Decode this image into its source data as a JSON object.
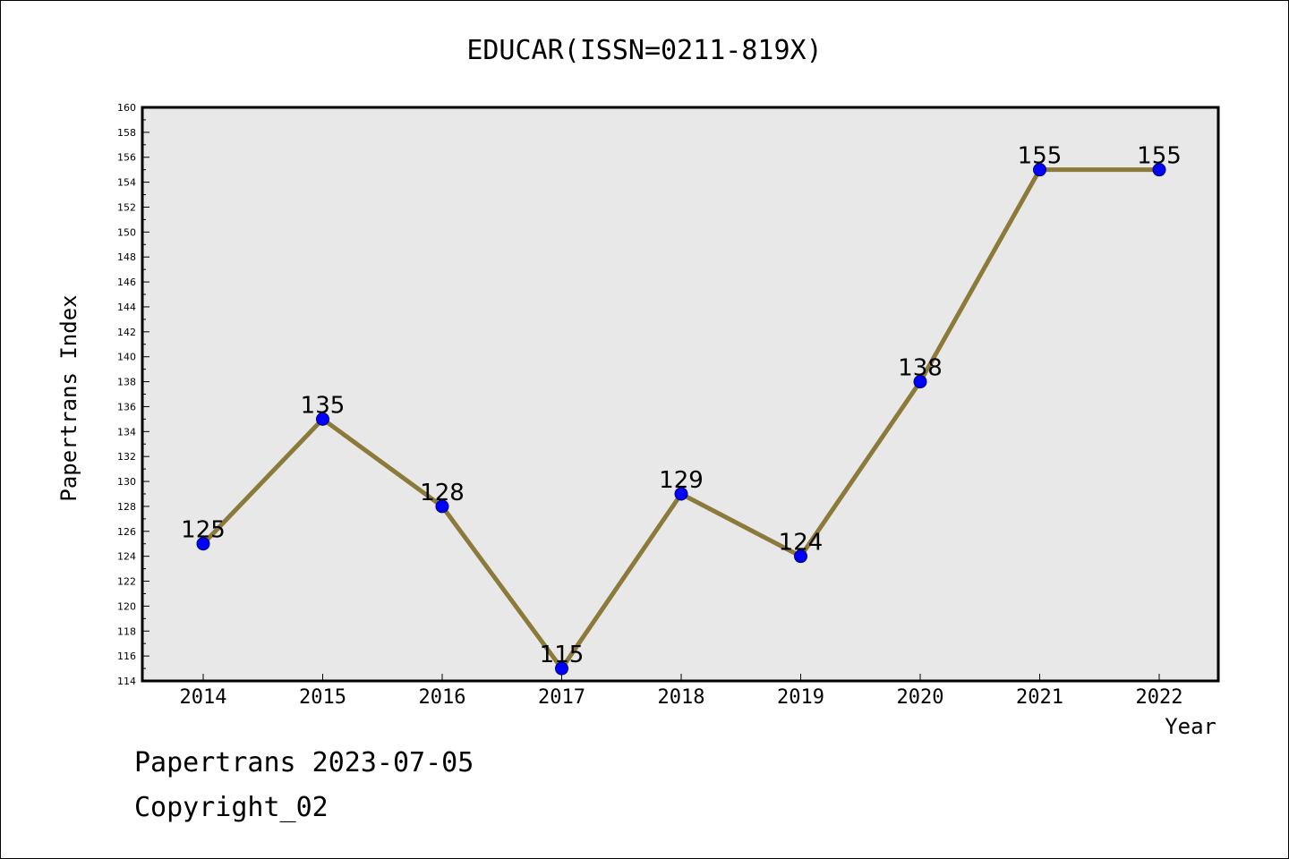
{
  "chart_data": {
    "type": "line",
    "title": "EDUCAR(ISSN=0211-819X)",
    "xlabel": "Year",
    "ylabel": "Papertrans Index",
    "categories": [
      "2014",
      "2015",
      "2016",
      "2017",
      "2018",
      "2019",
      "2020",
      "2021",
      "2022"
    ],
    "series": [
      {
        "values": [
          125,
          135,
          128,
          115,
          129,
          124,
          138,
          155,
          155
        ]
      }
    ],
    "ylim": [
      114,
      160
    ],
    "y_ticks": [
      "114",
      "116",
      "118",
      "120",
      "122",
      "124",
      "126",
      "128",
      "130",
      "132",
      "134",
      "136",
      "138",
      "140",
      "142",
      "144",
      "146",
      "148",
      "150",
      "152",
      "154",
      "156",
      "158",
      "160"
    ],
    "data_labels": [
      "125",
      "135",
      "128",
      "115",
      "129",
      "124",
      "138",
      "155",
      "155"
    ],
    "grid": false,
    "plot_background": "#e8e8e8",
    "line_color": "#8b7a3a",
    "marker_color": "#0000ff"
  },
  "footer": {
    "date_line": "Papertrans 2023-07-05",
    "copyright": "Copyright_02"
  }
}
